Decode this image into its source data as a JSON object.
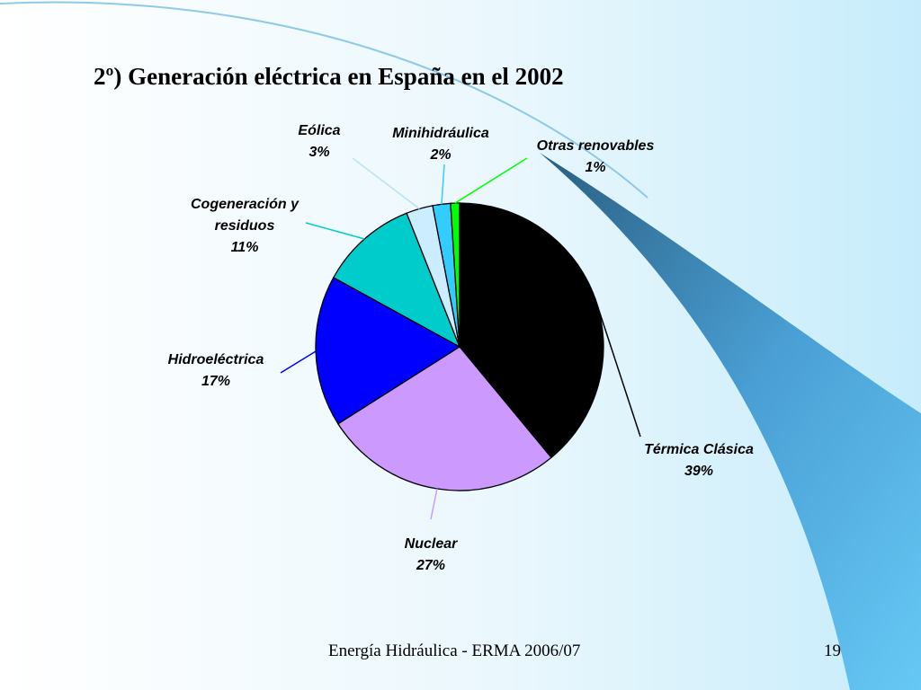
{
  "slide": {
    "title": "2º) Generación eléctrica en España en el 2002",
    "footer": "Energía Hidráulica - ERMA 2006/07",
    "page_number": "19"
  },
  "chart_data": {
    "type": "pie",
    "title": "",
    "slices": [
      {
        "name": "Térmica Clásica",
        "value": 39,
        "label": "39%",
        "color": "#000000"
      },
      {
        "name": "Nuclear",
        "value": 27,
        "label": "27%",
        "color": "#cc99ff"
      },
      {
        "name": "Hidroeléctrica",
        "value": 17,
        "label": "17%",
        "color": "#0000ff"
      },
      {
        "name": "Cogeneración y residuos",
        "value": 11,
        "label": "11%",
        "color": "#00cccc"
      },
      {
        "name": "Eólica",
        "value": 3,
        "label": "3%",
        "color": "#ccecff"
      },
      {
        "name": "Minihidráulica",
        "value": 2,
        "label": "2%",
        "color": "#33ccff"
      },
      {
        "name": "Otras renovables",
        "value": 1,
        "label": "1%",
        "color": "#00ff00"
      }
    ]
  }
}
